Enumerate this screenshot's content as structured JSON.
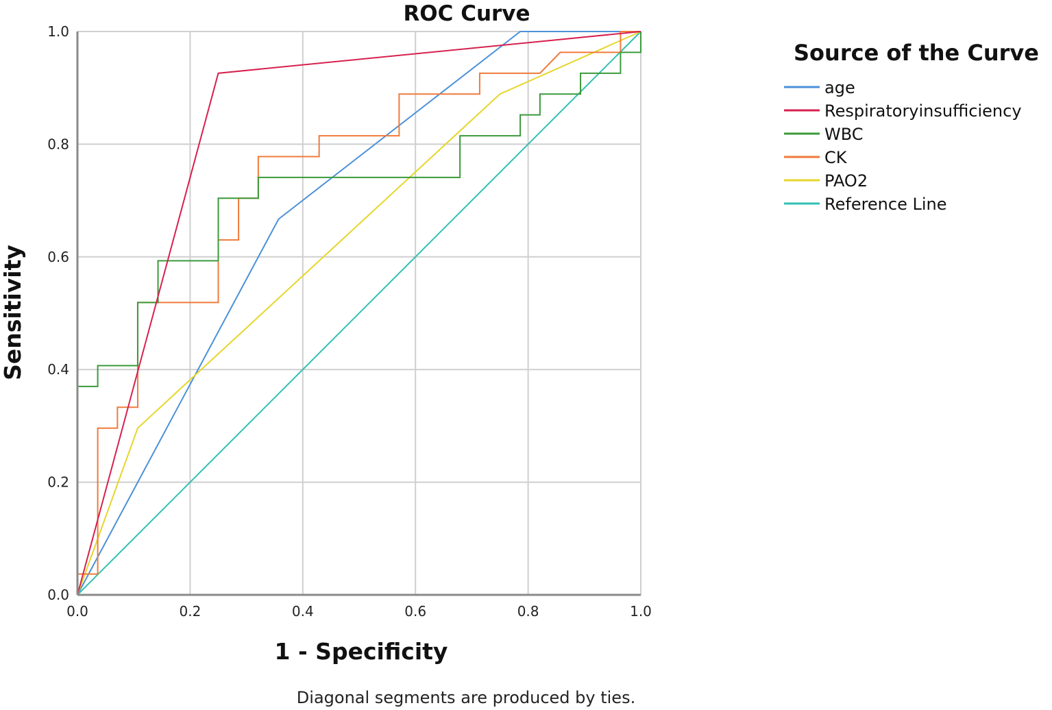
{
  "chart_data": {
    "type": "line",
    "title": "ROC Curve",
    "xlabel": "1 - Specificity",
    "ylabel": "Sensitivity",
    "xlim": [
      0,
      1
    ],
    "ylim": [
      0,
      1
    ],
    "xticks": [
      "0.0",
      "0.2",
      "0.4",
      "0.6",
      "0.8",
      "1.0"
    ],
    "yticks": [
      "0.0",
      "0.2",
      "0.4",
      "0.6",
      "0.8",
      "1.0"
    ],
    "grid": true,
    "legend_title": "Source of the Curve",
    "legend_position": "right",
    "footnote": "Diagonal segments are produced by ties.",
    "series": [
      {
        "name": "age",
        "color": "#4a90d9",
        "points": [
          [
            0,
            0
          ],
          [
            0.357,
            0.667
          ],
          [
            0.786,
            1.0
          ],
          [
            1.0,
            1.0
          ]
        ]
      },
      {
        "name": "Respiratoryinsufficiency",
        "color": "#d6204e",
        "points": [
          [
            0,
            0
          ],
          [
            0.25,
            0.926
          ],
          [
            1.0,
            1.0
          ]
        ]
      },
      {
        "name": "WBC",
        "color": "#3a9a3a",
        "points": [
          [
            0,
            0
          ],
          [
            0,
            0.37
          ],
          [
            0.036,
            0.37
          ],
          [
            0.036,
            0.407
          ],
          [
            0.107,
            0.407
          ],
          [
            0.107,
            0.519
          ],
          [
            0.143,
            0.519
          ],
          [
            0.143,
            0.593
          ],
          [
            0.25,
            0.593
          ],
          [
            0.25,
            0.704
          ],
          [
            0.286,
            0.704
          ],
          [
            0.321,
            0.704
          ],
          [
            0.321,
            0.741
          ],
          [
            0.679,
            0.741
          ],
          [
            0.679,
            0.815
          ],
          [
            0.786,
            0.815
          ],
          [
            0.786,
            0.852
          ],
          [
            0.821,
            0.852
          ],
          [
            0.821,
            0.889
          ],
          [
            0.893,
            0.889
          ],
          [
            0.893,
            0.926
          ],
          [
            0.964,
            0.926
          ],
          [
            0.964,
            0.963
          ],
          [
            1.0,
            0.963
          ],
          [
            1.0,
            1.0
          ]
        ]
      },
      {
        "name": "CK",
        "color": "#f07a3a",
        "points": [
          [
            0,
            0
          ],
          [
            0,
            0.037
          ],
          [
            0.036,
            0.037
          ],
          [
            0.036,
            0.296
          ],
          [
            0.071,
            0.296
          ],
          [
            0.071,
            0.333
          ],
          [
            0.107,
            0.333
          ],
          [
            0.107,
            0.519
          ],
          [
            0.25,
            0.519
          ],
          [
            0.25,
            0.63
          ],
          [
            0.286,
            0.63
          ],
          [
            0.286,
            0.704
          ],
          [
            0.321,
            0.704
          ],
          [
            0.321,
            0.778
          ],
          [
            0.429,
            0.778
          ],
          [
            0.429,
            0.815
          ],
          [
            0.571,
            0.815
          ],
          [
            0.571,
            0.889
          ],
          [
            0.714,
            0.889
          ],
          [
            0.714,
            0.926
          ],
          [
            0.821,
            0.926
          ],
          [
            0.857,
            0.963
          ],
          [
            0.964,
            0.963
          ],
          [
            0.964,
            1.0
          ],
          [
            1.0,
            1.0
          ]
        ]
      },
      {
        "name": "PAO2",
        "color": "#e6d62a",
        "points": [
          [
            0,
            0
          ],
          [
            0.107,
            0.296
          ],
          [
            0.75,
            0.889
          ],
          [
            1.0,
            1.0
          ]
        ]
      },
      {
        "name": "Reference Line",
        "color": "#2fbfb3",
        "points": [
          [
            0,
            0
          ],
          [
            1.0,
            1.0
          ]
        ]
      }
    ]
  }
}
